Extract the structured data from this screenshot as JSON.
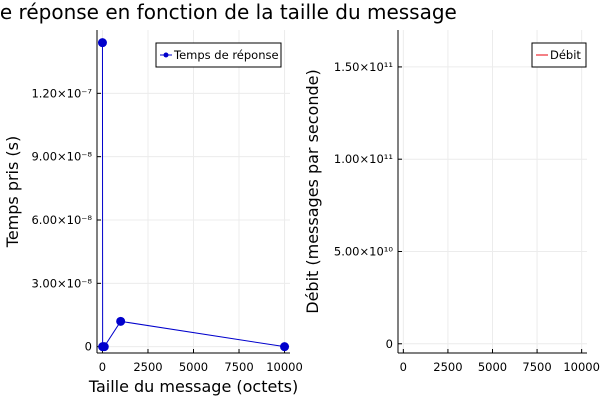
{
  "chart_data": [
    {
      "type": "line",
      "title": "Temps de réponse en fonction de la taille du message",
      "xlabel": "Taille du message (octets)",
      "ylabel": "Temps pris (s)",
      "xlim": [
        -300,
        10300
      ],
      "ylim": [
        -3e-09,
        1.5e-07
      ],
      "xticks": [
        0,
        2500,
        5000,
        7500,
        10000
      ],
      "xtick_labels": [
        "0",
        "2500",
        "5000",
        "7500",
        "10000"
      ],
      "yticks": [
        0,
        3e-08,
        6e-08,
        9e-08,
        1.2e-07
      ],
      "ytick_labels": [
        "0",
        "3.00×10⁻⁸",
        "6.00×10⁻⁸",
        "9.00×10⁻⁸",
        "1.20×10⁻⁷"
      ],
      "grid": true,
      "legend_position": "top-right",
      "series": [
        {
          "name": "Temps de réponse",
          "color": "#0000cc",
          "x": [
            0,
            10,
            100,
            1000,
            10000
          ],
          "y": [
            1.44e-07,
            0,
            0,
            1.2e-08,
            0
          ]
        }
      ]
    },
    {
      "type": "line",
      "title": "",
      "xlabel": "",
      "ylabel": "Débit (messages par seconde)",
      "xlim": [
        -300,
        10300
      ],
      "ylim": [
        -5000000000.0,
        170000000000.0
      ],
      "xticks": [
        0,
        2500,
        5000,
        7500,
        10000
      ],
      "xtick_labels": [
        "0",
        "2500",
        "5000",
        "7500",
        "10000"
      ],
      "yticks": [
        0,
        50000000000.0,
        100000000000.0,
        150000000000.0
      ],
      "ytick_labels": [
        "0",
        "5.00×10¹⁰",
        "1.00×10¹¹",
        "1.50×10¹¹"
      ],
      "grid": true,
      "legend_position": "top-right",
      "series": [
        {
          "name": "Débit",
          "color": "#e8000b",
          "x": [],
          "y": []
        }
      ]
    }
  ]
}
